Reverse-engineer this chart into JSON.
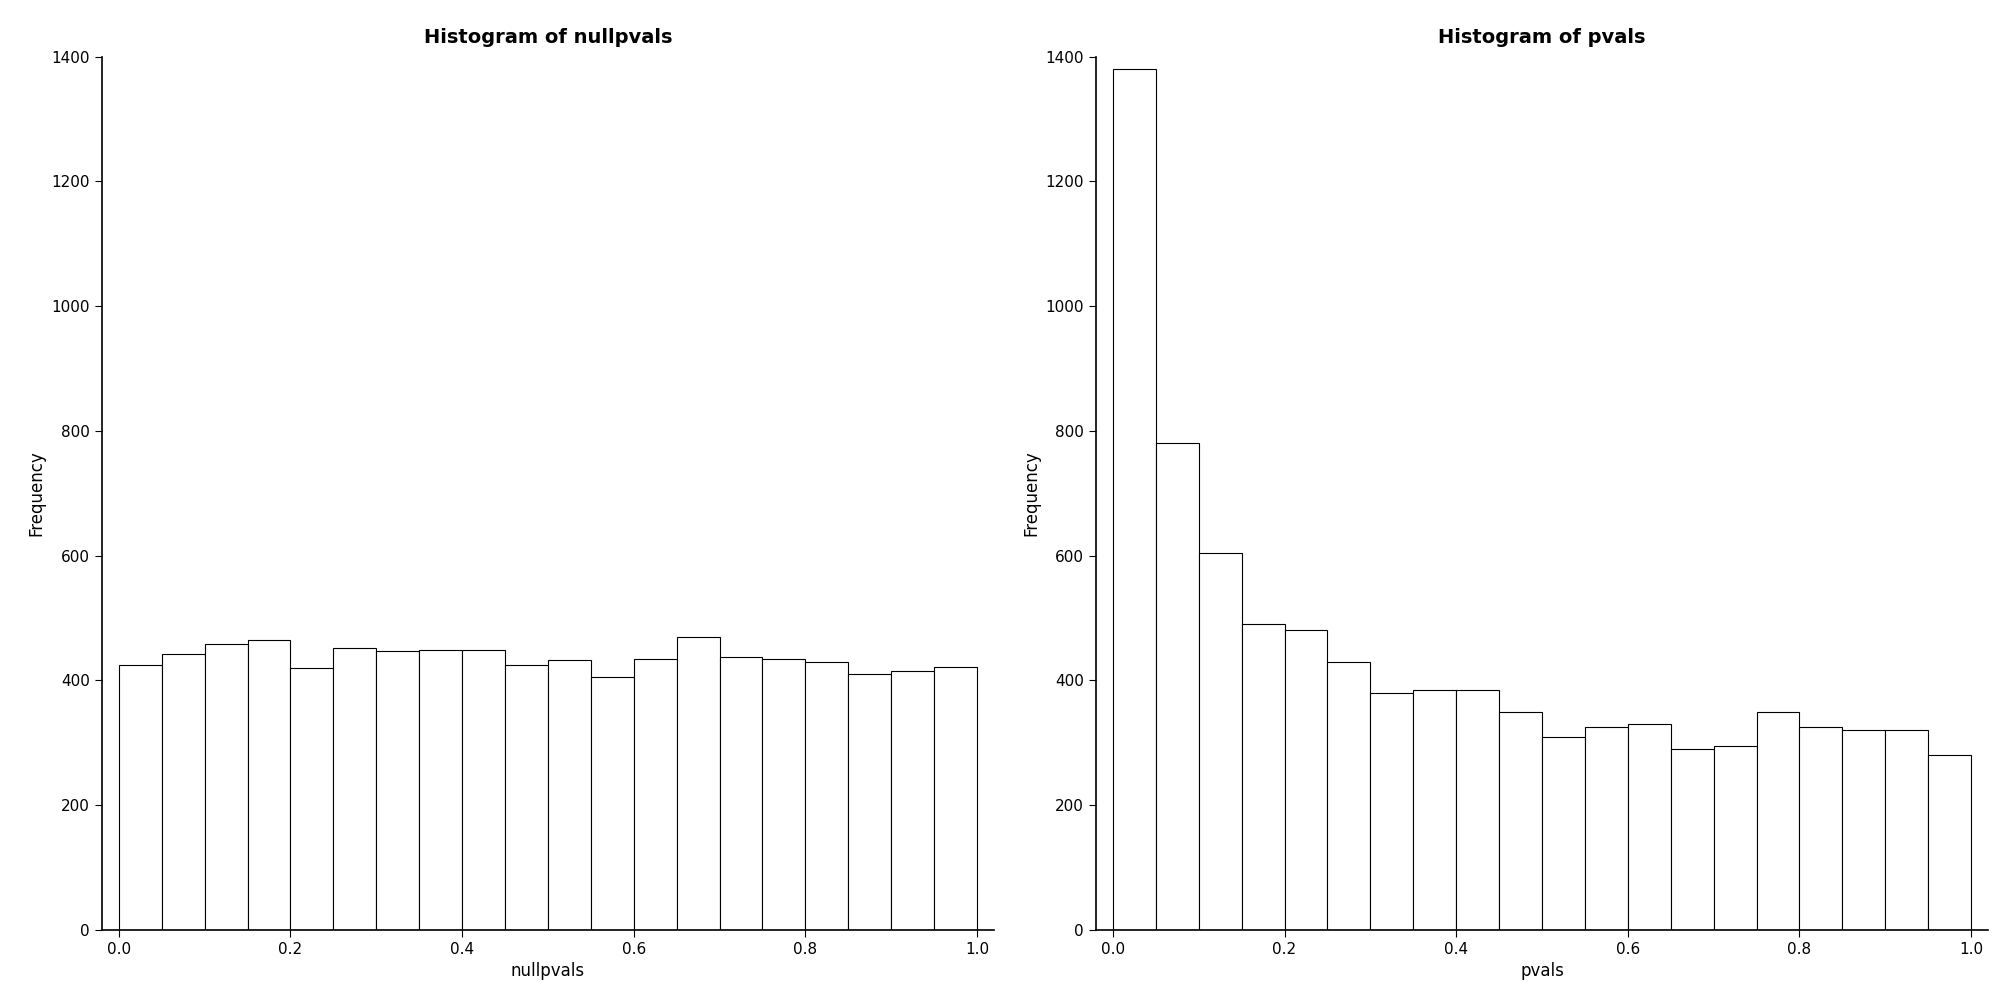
{
  "left_title": "Histogram of nullpvals",
  "left_xlabel": "nullpvals",
  "left_ylabel": "Frequency",
  "left_values": [
    425,
    443,
    458,
    465,
    420,
    452,
    447,
    448,
    448,
    425,
    432,
    405,
    435,
    470,
    437,
    435,
    430,
    410,
    415,
    422
  ],
  "right_title": "Histogram of pvals",
  "right_xlabel": "pvals",
  "right_ylabel": "Frequency",
  "right_values": [
    1380,
    780,
    605,
    490,
    480,
    430,
    380,
    385,
    385,
    350,
    310,
    325,
    330,
    290,
    295,
    350,
    325,
    320,
    320,
    280
  ],
  "ylim": [
    0,
    1400
  ],
  "yticks": [
    0,
    200,
    400,
    600,
    800,
    1000,
    1200,
    1400
  ],
  "nbins": 20,
  "bar_color": "white",
  "bar_edgecolor": "black",
  "background_color": "white",
  "title_fontsize": 14,
  "label_fontsize": 12,
  "tick_fontsize": 11
}
